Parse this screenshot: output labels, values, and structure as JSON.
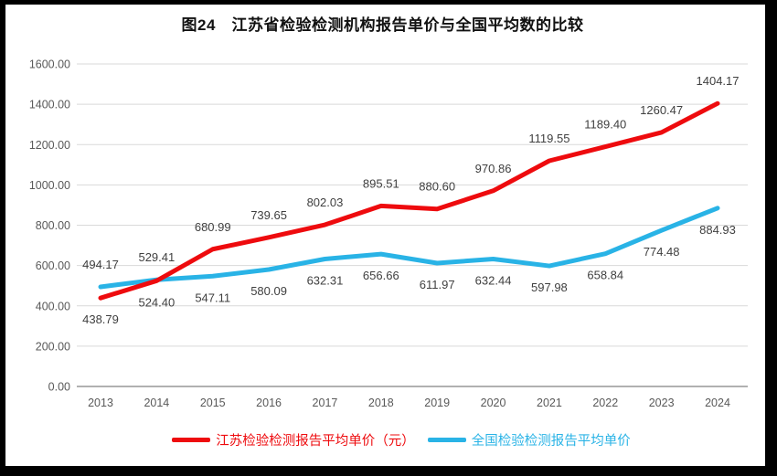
{
  "page": {
    "title": "图24　江苏省检验检测机构报告单价与全国平均数的比较"
  },
  "chart_data": {
    "type": "line",
    "title": "图24　江苏省检验检测机构报告单价与全国平均数的比较",
    "categories": [
      "2013",
      "2014",
      "2015",
      "2016",
      "2017",
      "2018",
      "2019",
      "2020",
      "2021",
      "2022",
      "2023",
      "2024"
    ],
    "series": [
      {
        "name": "江苏检验检测报告平均单价（元）",
        "color": "#ee0b0e",
        "values": [
          438.79,
          524.4,
          680.99,
          739.65,
          802.03,
          895.51,
          880.6,
          970.86,
          1119.55,
          1189.4,
          1260.47,
          1404.17
        ],
        "label_positions": [
          "below",
          "below",
          "above",
          "above",
          "above",
          "above",
          "above",
          "above",
          "above",
          "above",
          "above",
          "above"
        ]
      },
      {
        "name": "全国检验检测报告平均单价",
        "color": "#29b3e6",
        "values": [
          494.17,
          529.41,
          547.11,
          580.09,
          632.31,
          656.66,
          611.97,
          632.44,
          597.98,
          658.84,
          774.48,
          884.93
        ],
        "label_positions": [
          "above",
          "above",
          "below",
          "below",
          "below",
          "below",
          "below",
          "below",
          "below",
          "below",
          "below",
          "below"
        ]
      }
    ],
    "xlabel": "",
    "ylabel": "",
    "ylim": [
      0,
      1600
    ],
    "y_tick_step": 200,
    "y_tick_labels": [
      "0.00",
      "200.00",
      "400.00",
      "600.00",
      "800.00",
      "1000.00",
      "1200.00",
      "1400.00",
      "1600.00"
    ],
    "grid": true,
    "legend_position": "bottom",
    "colors": {
      "grid": "#d9d9d9",
      "axis": "#a6a6a6",
      "tick_text": "#595959",
      "label_text": "#3f3f3f",
      "title_text": "#111111"
    }
  }
}
